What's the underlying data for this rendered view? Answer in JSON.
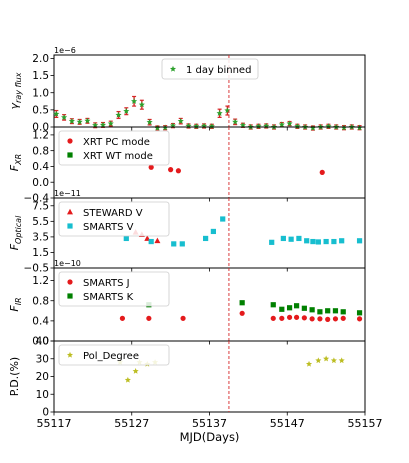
{
  "chart_data": {
    "type": "scatter",
    "x_axis": {
      "label": "MJD(Days)",
      "lim": [
        55117,
        55157
      ],
      "ticks": [
        55117,
        55127,
        55137,
        55147,
        55157
      ],
      "tick_labels": [
        "55117",
        "55127",
        "55137",
        "55147",
        "55157"
      ]
    },
    "vline": {
      "x": 55139.5,
      "style": "dashed",
      "color": "#d62728"
    },
    "panels": [
      {
        "id": "gamma",
        "ylabel": "γ_ray flux",
        "exponent_label": "1e−6",
        "ylim": [
          0,
          2.1
        ],
        "yticks": [
          0.0,
          0.5,
          1.0,
          1.5,
          2.0
        ],
        "ytick_labels": [
          "0.0",
          "0.5",
          "1.0",
          "1.5",
          "2.0"
        ],
        "legend": {
          "entries": [
            "1 day binned"
          ],
          "placement": "top-center"
        },
        "series": [
          {
            "name": "1 day binned",
            "marker": "star",
            "color": "#2ca02c",
            "errorbar_color": "#d62728",
            "points": [
              [
                55117.3,
                0.38,
                0.1
              ],
              [
                55118.3,
                0.28,
                0.08
              ],
              [
                55119.3,
                0.17,
                0.07
              ],
              [
                55120.3,
                0.15,
                0.07
              ],
              [
                55121.3,
                0.18,
                0.07
              ],
              [
                55122.3,
                0.05,
                0.07
              ],
              [
                55123.3,
                0.06,
                0.07
              ],
              [
                55124.3,
                0.1,
                0.07
              ],
              [
                55125.3,
                0.35,
                0.1
              ],
              [
                55126.3,
                0.46,
                0.1
              ],
              [
                55127.3,
                0.75,
                0.14
              ],
              [
                55128.3,
                0.65,
                0.13
              ],
              [
                55129.3,
                0.14,
                0.08
              ],
              [
                55130.3,
                -0.03,
                0.06
              ],
              [
                55131.3,
                -0.02,
                0.06
              ],
              [
                55132.3,
                0.04,
                0.06
              ],
              [
                55133.3,
                0.17,
                0.08
              ],
              [
                55134.3,
                0.03,
                0.06
              ],
              [
                55135.3,
                0.02,
                0.06
              ],
              [
                55136.3,
                0.03,
                0.06
              ],
              [
                55137.3,
                0.02,
                0.06
              ],
              [
                55138.3,
                0.4,
                0.12
              ],
              [
                55139.3,
                0.48,
                0.13
              ],
              [
                55140.3,
                0.15,
                0.08
              ],
              [
                55141.3,
                0.05,
                0.06
              ],
              [
                55142.3,
                0.0,
                0.06
              ],
              [
                55143.3,
                0.02,
                0.06
              ],
              [
                55144.3,
                0.03,
                0.06
              ],
              [
                55145.3,
                0.0,
                0.06
              ],
              [
                55146.3,
                0.07,
                0.06
              ],
              [
                55147.3,
                0.1,
                0.06
              ],
              [
                55148.3,
                0.02,
                0.06
              ],
              [
                55149.3,
                0.0,
                0.06
              ],
              [
                55150.3,
                -0.03,
                0.06
              ],
              [
                55151.3,
                0.0,
                0.06
              ],
              [
                55152.3,
                0.02,
                0.06
              ],
              [
                55153.3,
                0.0,
                0.06
              ],
              [
                55154.3,
                -0.02,
                0.06
              ],
              [
                55155.3,
                0.0,
                0.06
              ],
              [
                55156.3,
                -0.02,
                0.06
              ]
            ]
          }
        ]
      },
      {
        "id": "xray",
        "ylabel": "F_XR",
        "ylim": [
          -0.4,
          1.4
        ],
        "yticks": [
          -0.4,
          0.0,
          0.4,
          0.8,
          1.2
        ],
        "ytick_labels": [
          "−0.4",
          "0.0",
          "0.4",
          "0.8",
          "1.2"
        ],
        "legend": {
          "entries": [
            "XRT PC mode",
            "XRT WT mode"
          ],
          "placement": "top-left"
        },
        "series": [
          {
            "name": "XRT PC mode",
            "marker": "circle",
            "color": "#e41a1c",
            "points": [
              [
                55129.5,
                0.38
              ],
              [
                55132.0,
                0.32
              ],
              [
                55133.0,
                0.29
              ],
              [
                55151.5,
                0.25
              ]
            ]
          },
          {
            "name": "XRT WT mode",
            "marker": "square",
            "color": "#008000",
            "points": []
          }
        ]
      },
      {
        "id": "optical",
        "ylabel": "F_Optical",
        "exponent_label": "1e−11",
        "ylim": [
          -0.5,
          8.5
        ],
        "yticks": [
          -0.5,
          1.5,
          3.5,
          5.5,
          7.5
        ],
        "ytick_labels": [
          "−0.5",
          "1.5",
          "3.5",
          "5.5",
          "7.5"
        ],
        "legend": {
          "entries": [
            "STEWARD V",
            "SMARTS V"
          ],
          "placement": "top-left"
        },
        "series": [
          {
            "name": "STEWARD V",
            "marker": "triangle",
            "color": "#e41a1c",
            "points": [
              [
                55127.5,
                4.1
              ],
              [
                55128.3,
                3.8
              ],
              [
                55129.0,
                3.3
              ],
              [
                55130.3,
                3.0
              ]
            ]
          },
          {
            "name": "SMARTS V",
            "marker": "square",
            "color": "#17becf",
            "points": [
              [
                55126.3,
                3.3
              ],
              [
                55129.5,
                2.9
              ],
              [
                55132.4,
                2.6
              ],
              [
                55133.5,
                2.6
              ],
              [
                55136.5,
                3.3
              ],
              [
                55137.5,
                4.2
              ],
              [
                55138.7,
                5.8
              ],
              [
                55145.0,
                2.8
              ],
              [
                55146.5,
                3.3
              ],
              [
                55147.5,
                3.2
              ],
              [
                55148.5,
                3.3
              ],
              [
                55149.5,
                3.0
              ],
              [
                55150.3,
                2.9
              ],
              [
                55151.0,
                2.85
              ],
              [
                55152.0,
                2.9
              ],
              [
                55153.0,
                2.9
              ],
              [
                55154.0,
                3.0
              ],
              [
                55156.3,
                3.0
              ]
            ]
          }
        ]
      },
      {
        "id": "ir",
        "ylabel": "F_IR",
        "exponent_label": "1e−10",
        "ylim": [
          0.0,
          1.45
        ],
        "yticks": [
          0.0,
          0.4,
          0.8,
          1.2
        ],
        "ytick_labels": [
          "0.0",
          "0.4",
          "0.8",
          "1.2"
        ],
        "legend": {
          "entries": [
            "SMARTS J",
            "SMARTS K"
          ],
          "placement": "top-left"
        },
        "series": [
          {
            "name": "SMARTS J",
            "marker": "circle",
            "color": "#e41a1c",
            "points": [
              [
                55125.8,
                0.45
              ],
              [
                55129.2,
                0.45
              ],
              [
                55133.6,
                0.45
              ],
              [
                55141.2,
                0.55
              ],
              [
                55145.2,
                0.45
              ],
              [
                55146.3,
                0.45
              ],
              [
                55147.3,
                0.47
              ],
              [
                55148.2,
                0.47
              ],
              [
                55149.2,
                0.46
              ],
              [
                55150.2,
                0.44
              ],
              [
                55151.2,
                0.44
              ],
              [
                55152.2,
                0.43
              ],
              [
                55153.2,
                0.44
              ],
              [
                55154.2,
                0.45
              ],
              [
                55156.3,
                0.44
              ]
            ]
          },
          {
            "name": "SMARTS K",
            "marker": "square",
            "color": "#008000",
            "points": [
              [
                55129.2,
                0.72
              ],
              [
                55141.2,
                0.76
              ],
              [
                55145.2,
                0.72
              ],
              [
                55146.3,
                0.63
              ],
              [
                55147.3,
                0.66
              ],
              [
                55148.2,
                0.7
              ],
              [
                55149.2,
                0.65
              ],
              [
                55150.2,
                0.62
              ],
              [
                55151.2,
                0.58
              ],
              [
                55152.2,
                0.6
              ],
              [
                55153.2,
                0.6
              ],
              [
                55154.2,
                0.58
              ],
              [
                55156.3,
                0.56
              ]
            ]
          }
        ]
      },
      {
        "id": "pd",
        "ylabel": "P.D.(%)",
        "ylim": [
          0,
          40
        ],
        "yticks": [
          0,
          10,
          20,
          30,
          40
        ],
        "ytick_labels": [
          "0",
          "10",
          "20",
          "30",
          "40"
        ],
        "legend": {
          "entries": [
            "Pol_Degree"
          ],
          "placement": "top-left"
        },
        "series": [
          {
            "name": "Pol_Degree",
            "marker": "star",
            "color": "#bcbd22",
            "points": [
              [
                55125.5,
                28
              ],
              [
                55126.5,
                18
              ],
              [
                55127.5,
                23
              ],
              [
                55128.0,
                28
              ],
              [
                55129.0,
                27
              ],
              [
                55130.0,
                28
              ],
              [
                55149.8,
                27
              ],
              [
                55151.0,
                29
              ],
              [
                55152.0,
                30
              ],
              [
                55153.0,
                29
              ],
              [
                55154.0,
                29
              ]
            ]
          }
        ]
      }
    ]
  }
}
